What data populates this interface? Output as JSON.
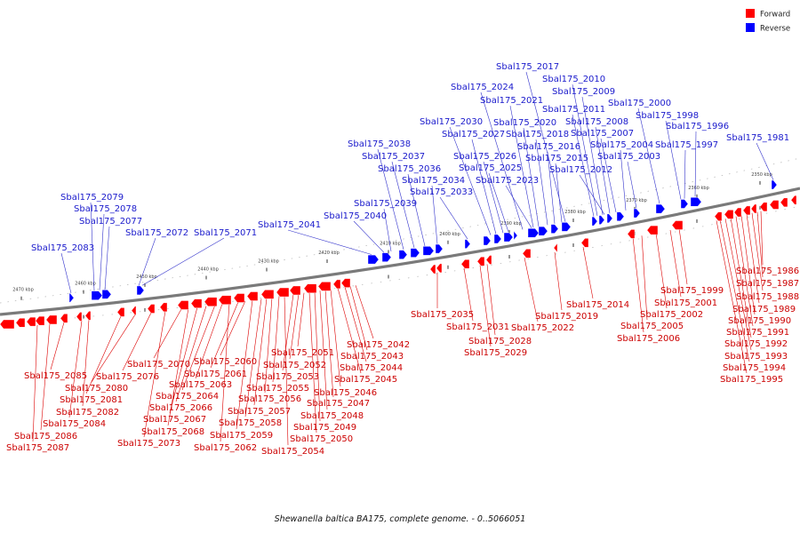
{
  "legend": {
    "forward": {
      "label": "Forward",
      "color": "#ff0000"
    },
    "reverse": {
      "label": "Reverse",
      "color": "#0000ff"
    }
  },
  "caption": "Shewanella baltica BA175, complete genome. - 0..5066051",
  "ticks": [
    "2350 kbp",
    "2360 kbp",
    "2370 kbp",
    "2380 kbp",
    "2390 kbp",
    "2400 kbp",
    "2410 kbp",
    "2420 kbp",
    "2430 kbp",
    "2440 kbp",
    "2450 kbp",
    "2460 kbp",
    "2470 kbp"
  ],
  "reverse_genes": [
    "Sbal175_1981",
    "Sbal175_1996",
    "Sbal175_1997",
    "Sbal175_1998",
    "Sbal175_2000",
    "Sbal175_2003",
    "Sbal175_2004",
    "Sbal175_2007",
    "Sbal175_2008",
    "Sbal175_2009",
    "Sbal175_2010",
    "Sbal175_2011",
    "Sbal175_2012",
    "Sbal175_2015",
    "Sbal175_2016",
    "Sbal175_2017",
    "Sbal175_2018",
    "Sbal175_2020",
    "Sbal175_2021",
    "Sbal175_2023",
    "Sbal175_2024",
    "Sbal175_2025",
    "Sbal175_2026",
    "Sbal175_2027",
    "Sbal175_2030",
    "Sbal175_2033",
    "Sbal175_2034",
    "Sbal175_2036",
    "Sbal175_2037",
    "Sbal175_2038",
    "Sbal175_2039",
    "Sbal175_2040",
    "Sbal175_2041",
    "Sbal175_2071",
    "Sbal175_2072",
    "Sbal175_2077",
    "Sbal175_2078",
    "Sbal175_2079",
    "Sbal175_2083"
  ],
  "forward_genes": [
    "Sbal175_1986",
    "Sbal175_1987",
    "Sbal175_1988",
    "Sbal175_1989",
    "Sbal175_1990",
    "Sbal175_1991",
    "Sbal175_1992",
    "Sbal175_1993",
    "Sbal175_1994",
    "Sbal175_1995",
    "Sbal175_1999",
    "Sbal175_2001",
    "Sbal175_2002",
    "Sbal175_2005",
    "Sbal175_2006",
    "Sbal175_2014",
    "Sbal175_2019",
    "Sbal175_2022",
    "Sbal175_2028",
    "Sbal175_2029",
    "Sbal175_2031",
    "Sbal175_2035",
    "Sbal175_2042",
    "Sbal175_2043",
    "Sbal175_2044",
    "Sbal175_2045",
    "Sbal175_2046",
    "Sbal175_2047",
    "Sbal175_2048",
    "Sbal175_2049",
    "Sbal175_2050",
    "Sbal175_2051",
    "Sbal175_2052",
    "Sbal175_2053",
    "Sbal175_2054",
    "Sbal175_2055",
    "Sbal175_2056",
    "Sbal175_2057",
    "Sbal175_2058",
    "Sbal175_2059",
    "Sbal175_2060",
    "Sbal175_2061",
    "Sbal175_2062",
    "Sbal175_2063",
    "Sbal175_2064",
    "Sbal175_2066",
    "Sbal175_2067",
    "Sbal175_2068",
    "Sbal175_2070",
    "Sbal175_2073",
    "Sbal175_2076",
    "Sbal175_2080",
    "Sbal175_2081",
    "Sbal175_2082",
    "Sbal175_2084",
    "Sbal175_2085",
    "Sbal175_2086",
    "Sbal175_2087"
  ]
}
